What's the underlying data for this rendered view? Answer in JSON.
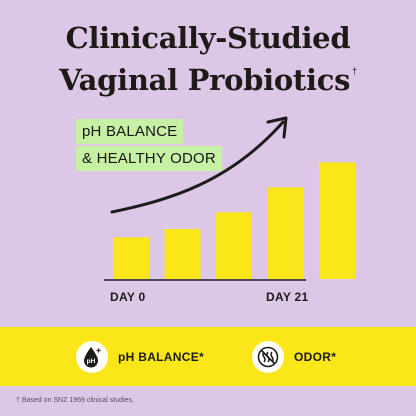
{
  "headline": {
    "line1": "Clinically-Studied",
    "line2": "Vaginal Probiotics",
    "mark": "†"
  },
  "callouts": [
    "pH BALANCE",
    "& HEALTHY ODOR"
  ],
  "colors": {
    "background": "#ddc7e6",
    "bar": "#fbe619",
    "callout": "#c6f0a4",
    "band": "#fbe619",
    "ink": "#1c1c1c"
  },
  "chart_data": {
    "type": "bar",
    "categories": [
      "",
      "",
      "",
      "",
      ""
    ],
    "values": [
      1.0,
      1.2,
      1.6,
      2.2,
      2.8
    ],
    "ylim": [
      0,
      3
    ],
    "trend_arrow": true,
    "grid": false,
    "x_tick_labels": {
      "start": "DAY 0",
      "end": "DAY 21"
    }
  },
  "benefits": [
    {
      "icon": "ph-drop-icon",
      "label": "pH BALANCE*"
    },
    {
      "icon": "odor-crossed-icon",
      "label": "ODOR*"
    }
  ],
  "footnote": "† Based on SNZ 1969 clinical studies."
}
